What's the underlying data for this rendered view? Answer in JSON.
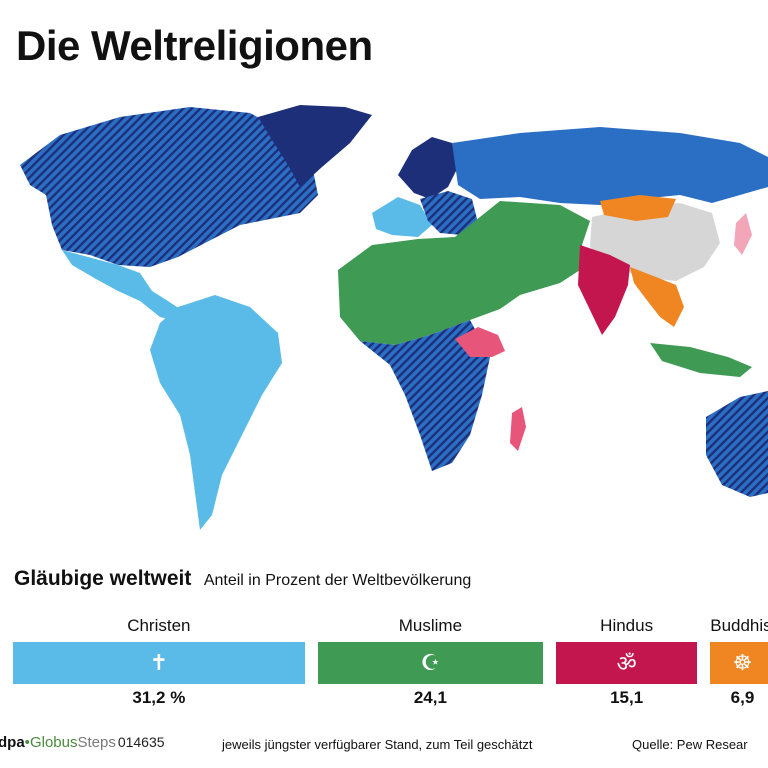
{
  "title": "Die Weltreligionen",
  "colors": {
    "christen": "#5bbbe8",
    "christen_dark": "#2b6fc4",
    "christen_navy": "#1e2f7a",
    "muslime": "#3f9a53",
    "hindus": "#c4164e",
    "hindus_light": "#e8557a",
    "buddhisten": "#ef8622",
    "unaffiliated": "#d6d6d6",
    "rose": "#f2a6b8"
  },
  "icons": {
    "christen": "cross-icon",
    "muslime": "crescent-star-icon",
    "hindus": "om-icon",
    "buddhisten": "dharma-wheel-icon"
  },
  "chart_data": {
    "type": "bar",
    "title": "Gläubige weltweit",
    "subtitle": "Anteil in Prozent der Weltbevölkerung",
    "categories": [
      "Christen",
      "Muslime",
      "Hindus",
      "Buddhist"
    ],
    "values": [
      31.2,
      24.1,
      15.1,
      6.9
    ],
    "value_labels": [
      "31,2 %",
      "24,1",
      "15,1",
      "6,9"
    ]
  },
  "footer": {
    "logo_dpa": "dpa",
    "logo_dot": "•",
    "logo_globus": "Globus",
    "logo_steps": "Steps",
    "logo_code": "014635",
    "note": "jeweils jüngster verfügbarer Stand, zum Teil geschätzt",
    "source": "Quelle: Pew Resear"
  }
}
